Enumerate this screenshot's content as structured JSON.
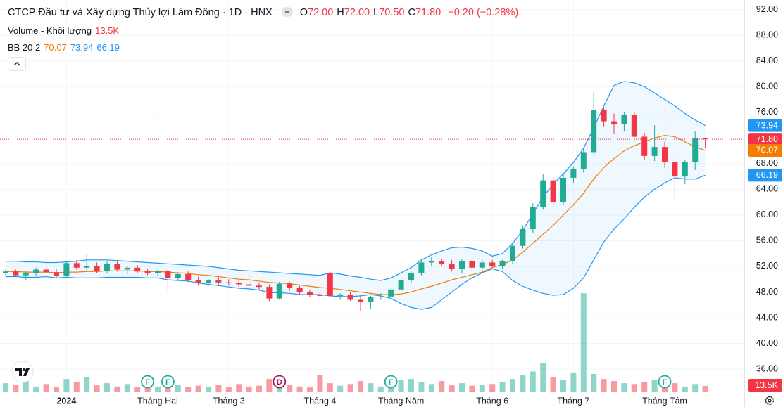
{
  "header": {
    "title": "CTCP Đầu tư và Xây dựng Thủy lợi Lâm Đông · 1D · HNX",
    "ohlc": [
      {
        "key": "O",
        "value": "72.00"
      },
      {
        "key": "H",
        "value": "72.00"
      },
      {
        "key": "L",
        "value": "70.50"
      },
      {
        "key": "C",
        "value": "71.80"
      }
    ],
    "change": "−0.20 (−0.28%)",
    "volume_label": "Volume - Khối lượng",
    "volume_value": "13.5K",
    "bb_label": "BB 20 2",
    "bb_values": [
      "70.07",
      "73.94",
      "66.19"
    ]
  },
  "chart_data": {
    "type": "candlestick",
    "open": [
      51.0,
      51.2,
      50.6,
      50.9,
      51.5,
      51.1,
      50.5,
      52.5,
      51.8,
      52.0,
      51.3,
      52.4,
      51.5,
      51.8,
      51.2,
      51.0,
      51.3,
      50.2,
      50.8,
      49.8,
      49.4,
      49.8,
      49.5,
      49.4,
      49.2,
      49.0,
      48.8,
      47.0,
      49.3,
      48.6,
      48.0,
      47.6,
      51.0,
      47.4,
      47.6,
      46.8,
      46.5,
      47.2,
      47.3,
      48.4,
      49.8,
      51.0,
      52.6,
      52.8,
      52.4,
      51.6,
      52.8,
      51.8,
      52.6,
      52.0,
      52.8,
      55.2,
      57.8,
      61.2,
      65.4,
      62.0,
      65.8,
      67.2,
      69.8,
      76.4,
      74.6,
      74.2,
      75.6,
      72.2,
      69.2,
      70.6,
      68.2,
      66.0,
      68.2,
      72.0
    ],
    "high": [
      51.6,
      51.5,
      51.2,
      51.8,
      52.2,
      51.6,
      52.8,
      53.0,
      54.0,
      52.6,
      52.8,
      52.8,
      52.0,
      52.2,
      51.6,
      51.5,
      51.6,
      51.0,
      51.2,
      50.4,
      50.0,
      50.3,
      50.0,
      49.8,
      51.0,
      49.5,
      49.2,
      49.6,
      49.6,
      49.0,
      48.4,
      48.0,
      51.0,
      47.8,
      48.0,
      47.6,
      47.4,
      47.8,
      48.6,
      50.2,
      51.2,
      53.0,
      53.4,
      53.2,
      53.0,
      53.2,
      53.2,
      53.0,
      53.0,
      53.0,
      55.6,
      58.4,
      61.8,
      66.4,
      66.0,
      66.4,
      67.6,
      70.4,
      79.2,
      76.8,
      75.8,
      76.0,
      76.0,
      72.8,
      74.0,
      71.4,
      69.0,
      68.6,
      73.0,
      72.0
    ],
    "low": [
      50.6,
      50.4,
      49.8,
      50.5,
      51.0,
      50.2,
      50.4,
      51.5,
      51.2,
      51.0,
      51.0,
      51.2,
      50.8,
      51.0,
      50.6,
      50.5,
      48.2,
      49.8,
      49.6,
      49.0,
      49.0,
      49.2,
      49.0,
      48.8,
      48.9,
      48.4,
      46.6,
      46.8,
      48.2,
      47.6,
      47.2,
      47.0,
      47.2,
      46.8,
      46.6,
      45.0,
      45.4,
      46.8,
      47.0,
      48.0,
      49.4,
      50.6,
      52.0,
      52.0,
      51.2,
      51.0,
      51.4,
      51.4,
      51.8,
      51.6,
      52.4,
      54.8,
      57.2,
      60.8,
      61.2,
      61.6,
      65.0,
      66.6,
      69.4,
      73.8,
      72.6,
      73.0,
      71.6,
      68.6,
      68.4,
      67.4,
      62.4,
      64.8,
      67.0,
      70.5
    ],
    "close": [
      51.2,
      50.6,
      50.9,
      51.5,
      51.1,
      50.5,
      52.5,
      51.8,
      52.0,
      51.3,
      52.4,
      51.5,
      51.8,
      51.2,
      51.0,
      51.3,
      50.2,
      50.8,
      49.8,
      49.4,
      49.8,
      49.5,
      49.4,
      49.2,
      49.0,
      48.8,
      47.0,
      49.3,
      48.6,
      48.0,
      47.6,
      47.4,
      47.4,
      47.6,
      46.8,
      46.5,
      47.2,
      47.3,
      48.4,
      49.8,
      51.0,
      52.6,
      52.8,
      52.4,
      51.6,
      52.8,
      51.8,
      52.6,
      52.0,
      52.8,
      55.2,
      57.8,
      61.2,
      65.4,
      62.0,
      65.8,
      67.2,
      69.8,
      76.4,
      74.6,
      74.2,
      75.6,
      72.2,
      69.2,
      70.6,
      68.2,
      66.0,
      68.2,
      72.0,
      71.8
    ],
    "volume": [
      20000,
      15000,
      25000,
      12000,
      18000,
      10000,
      30000,
      22000,
      35000,
      15000,
      20000,
      12000,
      18000,
      10000,
      14000,
      12000,
      28000,
      15000,
      10000,
      14000,
      12000,
      16000,
      10000,
      18000,
      12000,
      14000,
      30000,
      22000,
      16000,
      12000,
      10000,
      40000,
      20000,
      14000,
      18000,
      25000,
      20000,
      12000,
      35000,
      28000,
      30000,
      22000,
      18000,
      25000,
      15000,
      20000,
      14000,
      16000,
      18000,
      22000,
      30000,
      40000,
      48000,
      68000,
      35000,
      28000,
      45000,
      235000,
      42000,
      30000,
      25000,
      20000,
      18000,
      22000,
      28000,
      15000,
      20000,
      12000,
      18000,
      13500
    ],
    "up_color": "#22ab94",
    "down_color": "#f23645",
    "bb": {
      "basis_color": "#f57c00",
      "band_color": "#2196f3",
      "upper": [
        52.8,
        52.8,
        52.7,
        52.7,
        52.6,
        52.6,
        52.7,
        52.8,
        53.0,
        53.0,
        53.0,
        52.9,
        52.8,
        52.7,
        52.6,
        52.5,
        52.4,
        52.3,
        52.2,
        52.1,
        52.0,
        51.8,
        51.6,
        51.4,
        51.3,
        51.2,
        51.1,
        51.0,
        50.9,
        50.8,
        50.7,
        50.6,
        51.0,
        50.8,
        50.5,
        50.3,
        50.0,
        49.8,
        50.2,
        51.0,
        51.8,
        53.0,
        53.8,
        54.4,
        54.9,
        55.0,
        54.8,
        54.4,
        53.6,
        54.0,
        55.6,
        57.6,
        60.2,
        62.8,
        64.8,
        66.4,
        68.2,
        70.4,
        73.6,
        77.0,
        80.2,
        80.8,
        80.6,
        80.0,
        79.0,
        78.0,
        77.0,
        75.8,
        74.8,
        73.94
      ],
      "middle": [
        51.2,
        51.2,
        51.1,
        51.1,
        51.1,
        51.0,
        51.1,
        51.1,
        51.2,
        51.2,
        51.3,
        51.3,
        51.3,
        51.3,
        51.2,
        51.2,
        51.1,
        51.0,
        50.9,
        50.7,
        50.6,
        50.4,
        50.2,
        50.0,
        49.9,
        49.7,
        49.5,
        49.4,
        49.3,
        49.1,
        48.9,
        48.7,
        48.6,
        48.4,
        48.2,
        48.0,
        47.8,
        47.6,
        47.6,
        47.7,
        48.0,
        48.5,
        48.9,
        49.4,
        49.9,
        50.3,
        50.7,
        51.1,
        51.8,
        52.3,
        53.0,
        54.2,
        55.6,
        57.0,
        58.4,
        60.0,
        61.6,
        63.4,
        65.6,
        67.4,
        68.8,
        70.0,
        70.8,
        71.4,
        72.0,
        72.4,
        72.2,
        71.4,
        70.6,
        70.07
      ],
      "lower": [
        50.4,
        50.4,
        50.3,
        50.3,
        50.4,
        50.2,
        50.3,
        50.2,
        50.2,
        50.2,
        50.3,
        50.3,
        50.3,
        50.3,
        50.2,
        50.2,
        49.9,
        49.8,
        49.7,
        49.4,
        49.2,
        49.0,
        48.8,
        48.6,
        48.5,
        48.3,
        47.9,
        47.9,
        47.8,
        47.6,
        47.6,
        47.6,
        47.4,
        47.3,
        47.3,
        47.4,
        47.6,
        47.4,
        47.0,
        46.2,
        45.6,
        45.3,
        45.6,
        46.8,
        48.0,
        49.2,
        50.2,
        51.0,
        51.6,
        51.2,
        49.8,
        48.9,
        48.3,
        47.8,
        47.5,
        47.6,
        48.6,
        50.2,
        53.0,
        55.8,
        57.8,
        59.4,
        61.2,
        62.8,
        64.0,
        65.0,
        65.8,
        65.6,
        65.6,
        66.19
      ]
    },
    "ylim": [
      32.5,
      93.5
    ],
    "yticks": [
      {
        "value": 36,
        "label": "36.00"
      },
      {
        "value": 40,
        "label": "40.00"
      },
      {
        "value": 44,
        "label": "44.00"
      },
      {
        "value": 48,
        "label": "48.00"
      },
      {
        "value": 52,
        "label": "52.00"
      },
      {
        "value": 56,
        "label": "56.00"
      },
      {
        "value": 60,
        "label": "60.00"
      },
      {
        "value": 64,
        "label": "64.00"
      },
      {
        "value": 68,
        "label": "68.00"
      },
      {
        "value": 72,
        "label": "72.00"
      },
      {
        "value": 76,
        "label": "76.00"
      },
      {
        "value": 80,
        "label": "80.00"
      },
      {
        "value": 84,
        "label": "84.00"
      },
      {
        "value": 88,
        "label": "88.00"
      },
      {
        "value": 92,
        "label": "92.00"
      }
    ],
    "xticks": [
      {
        "value": 6,
        "label": "2024"
      },
      {
        "value": 15,
        "label": "Tháng Hai"
      },
      {
        "value": 22,
        "label": "Tháng 3"
      },
      {
        "value": 31,
        "label": "Tháng 4"
      },
      {
        "value": 39,
        "label": "Tháng Năm"
      },
      {
        "value": 48,
        "label": "Tháng 6"
      },
      {
        "value": 56,
        "label": "Tháng 7"
      },
      {
        "value": 65,
        "label": "Tháng Tám"
      }
    ],
    "volume_lim": [
      0,
      420000
    ],
    "grid": true,
    "events": [
      {
        "index": 14,
        "label": "F",
        "color": "#22ab94"
      },
      {
        "index": 16,
        "label": "F",
        "color": "#22ab94"
      },
      {
        "index": 27,
        "label": "D",
        "color": "#9c1d5e"
      },
      {
        "index": 38,
        "label": "F",
        "color": "#22ab94"
      },
      {
        "index": 65,
        "label": "F",
        "color": "#22ab94"
      }
    ]
  }
}
